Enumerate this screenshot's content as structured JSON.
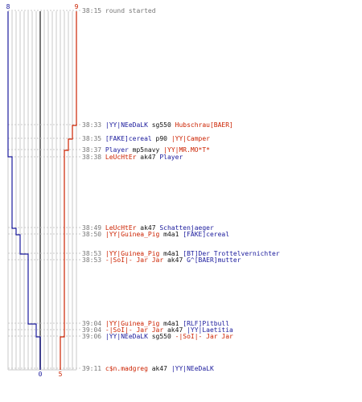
{
  "scoreboard": {
    "team_blue": {
      "color": "#1a1a9c",
      "start_score": "8",
      "end_score": "0"
    },
    "team_red": {
      "color": "#cc2200",
      "start_score": "9",
      "end_score": "5"
    }
  },
  "colors": {
    "blue": "#1a1a9c",
    "red": "#cc2200",
    "black": "#111111",
    "time": "#777777",
    "grid": "#c8c8c8",
    "center": "#777777"
  },
  "events": [
    {
      "time": "38:15",
      "parts": [
        {
          "text": "round started",
          "color": "gray"
        }
      ]
    },
    {
      "time": "38:33",
      "parts": [
        {
          "text": "|YY|NEeDaLK",
          "color": "blue"
        },
        {
          "text": " sg550 ",
          "color": "black"
        },
        {
          "text": "Hubschrau[BAER]",
          "color": "red"
        }
      ]
    },
    {
      "time": "38:35",
      "parts": [
        {
          "text": "[FAKE]cereal",
          "color": "blue"
        },
        {
          "text": " p90 ",
          "color": "black"
        },
        {
          "text": "|YY|Camper",
          "color": "red"
        }
      ]
    },
    {
      "time": "38:37",
      "parts": [
        {
          "text": "Player",
          "color": "blue"
        },
        {
          "text": " mp5navy ",
          "color": "black"
        },
        {
          "text": "|YY|MR.MO*T*",
          "color": "red"
        }
      ]
    },
    {
      "time": "38:38",
      "parts": [
        {
          "text": "LeUcHtEr",
          "color": "red"
        },
        {
          "text": " ak47 ",
          "color": "black"
        },
        {
          "text": "Player",
          "color": "blue"
        }
      ]
    },
    {
      "time": "38:49",
      "parts": [
        {
          "text": "LeUcHtEr",
          "color": "red"
        },
        {
          "text": " ak47 ",
          "color": "black"
        },
        {
          "text": "Schattenjaeger",
          "color": "blue"
        }
      ]
    },
    {
      "time": "38:50",
      "parts": [
        {
          "text": "|YY|Guinea_Pig",
          "color": "red"
        },
        {
          "text": " m4a1 ",
          "color": "black"
        },
        {
          "text": "[FAKE]cereal",
          "color": "blue"
        }
      ]
    },
    {
      "time": "38:53",
      "parts": [
        {
          "text": "|YY|Guinea_Pig",
          "color": "red"
        },
        {
          "text": " m4a1 ",
          "color": "black"
        },
        {
          "text": "[BT]Der Trottelvernichter",
          "color": "blue"
        }
      ]
    },
    {
      "time": "38:53",
      "parts": [
        {
          "text": "-|SoI|- Jar Jar",
          "color": "red"
        },
        {
          "text": " ak47 ",
          "color": "black"
        },
        {
          "text": "G^[BAER]mutter",
          "color": "blue"
        }
      ]
    },
    {
      "time": "39:04",
      "parts": [
        {
          "text": "|YY|Guinea_Pig",
          "color": "red"
        },
        {
          "text": " m4a1 ",
          "color": "black"
        },
        {
          "text": "[RLF]Pitbull",
          "color": "blue"
        }
      ]
    },
    {
      "time": "39:04",
      "parts": [
        {
          "text": "-|SoI|- Jar Jar",
          "color": "red"
        },
        {
          "text": " ak47 ",
          "color": "black"
        },
        {
          "text": "|YY|Laetitia",
          "color": "blue"
        }
      ]
    },
    {
      "time": "39:06",
      "parts": [
        {
          "text": "|YY|NEeDaLK",
          "color": "blue"
        },
        {
          "text": " sg550 ",
          "color": "black"
        },
        {
          "text": "-|SoI|- Jar Jar",
          "color": "red"
        }
      ]
    },
    {
      "time": "39:11",
      "parts": [
        {
          "text": "c$n.madgreg",
          "color": "red"
        },
        {
          "text": " ak47 ",
          "color": "black"
        },
        {
          "text": "|YY|NEeDaLK",
          "color": "blue"
        }
      ]
    }
  ]
}
